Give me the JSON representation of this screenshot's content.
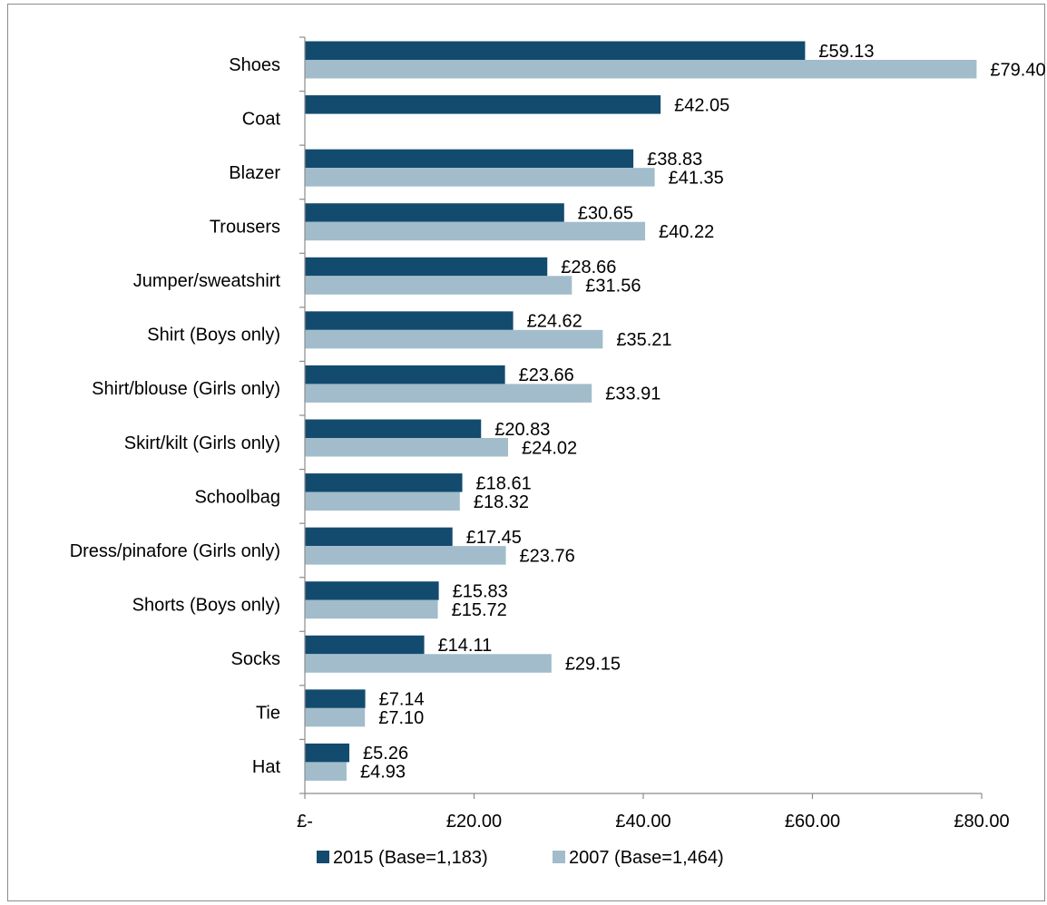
{
  "chart_data": {
    "type": "bar",
    "orientation": "horizontal",
    "categories": [
      "Shoes",
      "Coat",
      "Blazer",
      "Trousers",
      "Jumper/sweatshirt",
      "Shirt (Boys only)",
      "Shirt/blouse (Girls only)",
      "Skirt/kilt (Girls only)",
      "Schoolbag",
      "Dress/pinafore (Girls only)",
      "Shorts (Boys only)",
      "Socks",
      "Tie",
      "Hat"
    ],
    "series": [
      {
        "name": "2015 (Base=1,183)",
        "color": "#134b6e",
        "values": [
          59.13,
          42.05,
          38.83,
          30.65,
          28.66,
          24.62,
          23.66,
          20.83,
          18.61,
          17.45,
          15.83,
          14.11,
          7.14,
          5.26
        ],
        "labels": [
          "£59.13",
          "£42.05",
          "£38.83",
          "£30.65",
          "£28.66",
          "£24.62",
          "£23.66",
          "£20.83",
          "£18.61",
          "£17.45",
          "£15.83",
          "£14.11",
          "£7.14",
          "£5.26"
        ]
      },
      {
        "name": "2007 (Base=1,464)",
        "color": "#a2bccb",
        "values": [
          79.4,
          null,
          41.35,
          40.22,
          31.56,
          35.21,
          33.91,
          24.02,
          18.32,
          23.76,
          15.72,
          29.15,
          7.1,
          4.93
        ],
        "labels": [
          "£79.40",
          "",
          "£41.35",
          "£40.22",
          "£31.56",
          "£35.21",
          "£33.91",
          "£24.02",
          "£18.32",
          "£23.76",
          "£15.72",
          "£29.15",
          "£7.10",
          "£4.93"
        ]
      }
    ],
    "xlim": [
      0,
      80
    ],
    "xticks": [
      0,
      20,
      40,
      60,
      80
    ],
    "xtick_labels": [
      "£-",
      "£20.00",
      "£40.00",
      "£60.00",
      "£80.00"
    ],
    "legend_position": "bottom",
    "grid": false
  }
}
